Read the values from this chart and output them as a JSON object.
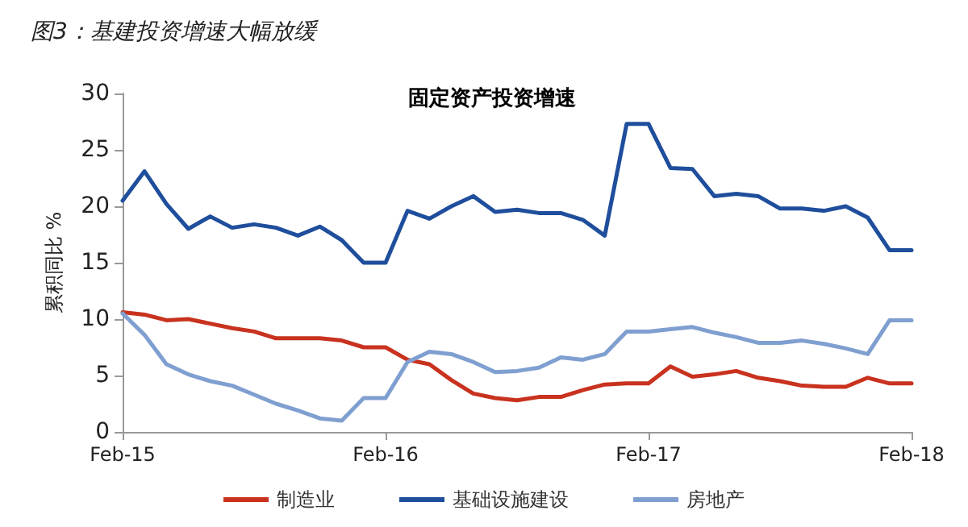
{
  "chart_data": {
    "type": "line",
    "title": "图3：基建投资增速大幅放缓",
    "subtitle": "固定资产投资增速",
    "ylabel": "累积同比 %",
    "categories": [
      "Feb-15",
      null,
      null,
      null,
      null,
      null,
      null,
      null,
      null,
      null,
      null,
      null,
      "Feb-16",
      null,
      null,
      null,
      null,
      null,
      null,
      null,
      null,
      null,
      null,
      null,
      "Feb-17",
      null,
      null,
      null,
      null,
      null,
      null,
      null,
      null,
      null,
      null,
      null,
      "Feb-18"
    ],
    "series": [
      {
        "name": "制造业",
        "color": "#c8321e",
        "values": [
          10.6,
          10.4,
          9.9,
          10.0,
          9.6,
          9.2,
          8.9,
          8.3,
          8.3,
          8.3,
          8.1,
          7.5,
          7.5,
          6.4,
          6.0,
          4.6,
          3.4,
          3.0,
          2.8,
          3.1,
          3.1,
          3.7,
          4.2,
          4.3,
          4.3,
          5.8,
          4.9,
          5.1,
          5.4,
          4.8,
          4.5,
          4.1,
          4.0,
          4.0,
          4.8,
          4.3,
          4.3
        ]
      },
      {
        "name": "基础设施建设",
        "color": "#1f4e9c",
        "values": [
          20.5,
          23.1,
          20.2,
          18.0,
          19.1,
          18.1,
          18.4,
          18.1,
          17.4,
          18.2,
          17.0,
          15.0,
          15.0,
          19.6,
          18.9,
          20.0,
          20.9,
          19.5,
          19.7,
          19.4,
          19.4,
          18.8,
          17.4,
          27.3,
          27.3,
          23.4,
          23.3,
          20.9,
          21.1,
          20.9,
          19.8,
          19.8,
          19.6,
          20.0,
          19.0,
          16.1,
          16.1
        ]
      },
      {
        "name": "房地产",
        "color": "#7f9fd0",
        "values": [
          10.5,
          8.6,
          6.0,
          5.1,
          4.5,
          4.1,
          3.3,
          2.5,
          1.9,
          1.2,
          1.0,
          3.0,
          3.0,
          6.2,
          7.1,
          6.9,
          6.2,
          5.3,
          5.4,
          5.7,
          6.6,
          6.4,
          6.9,
          8.9,
          8.9,
          9.1,
          9.3,
          8.8,
          8.4,
          7.9,
          7.9,
          8.1,
          7.8,
          7.4,
          6.9,
          9.9,
          9.9
        ]
      }
    ],
    "ylim": [
      0,
      30
    ],
    "yticks": [
      0,
      5,
      10,
      15,
      20,
      25,
      30
    ],
    "grid": false,
    "legend": "bottom",
    "marker": "none",
    "line_style": "solid"
  }
}
